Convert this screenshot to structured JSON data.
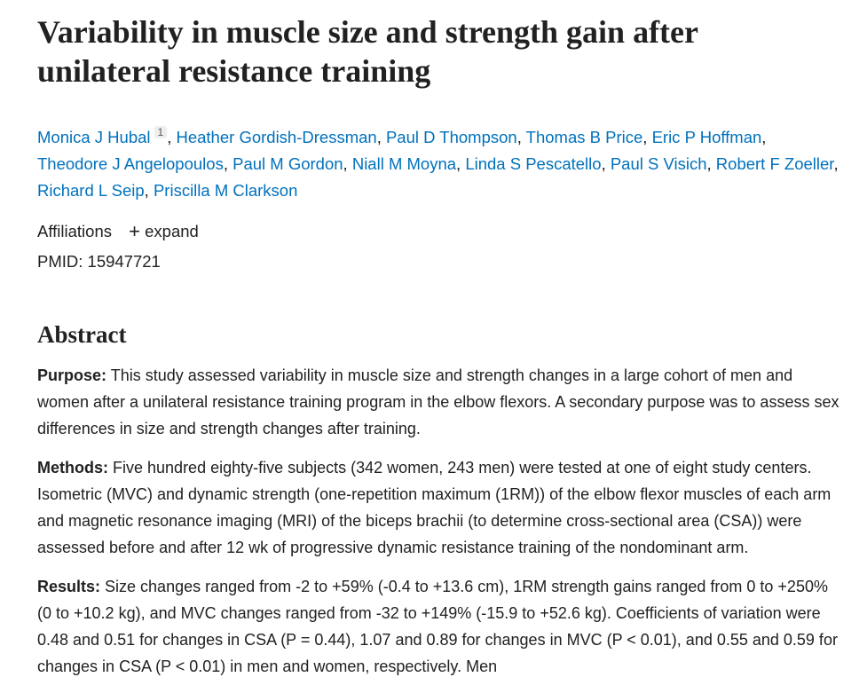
{
  "header": {
    "title": "Variability in muscle size and strength gain after unilateral resistance training",
    "authors": [
      {
        "name": "Monica J Hubal",
        "sup": "1"
      },
      {
        "name": "Heather Gordish-Dressman"
      },
      {
        "name": "Paul D Thompson"
      },
      {
        "name": "Thomas B Price"
      },
      {
        "name": "Eric P Hoffman"
      },
      {
        "name": "Theodore J Angelopoulos"
      },
      {
        "name": "Paul M Gordon"
      },
      {
        "name": "Niall M Moyna"
      },
      {
        "name": "Linda S Pescatello"
      },
      {
        "name": "Paul S Visich"
      },
      {
        "name": "Robert F Zoeller"
      },
      {
        "name": "Richard L Seip"
      },
      {
        "name": "Priscilla M Clarkson"
      }
    ],
    "affiliations": "Affiliations",
    "expand": "expand",
    "pmid": "PMID: 15947721"
  },
  "abstract": {
    "heading": "Abstract",
    "sections": [
      {
        "label": "Purpose:",
        "text": "This study assessed variability in muscle size and strength changes in a large cohort of men and women after a unilateral resistance training program in the elbow flexors. A secondary purpose was to assess sex differences in size and strength changes after training."
      },
      {
        "label": "Methods:",
        "text": "Five hundred eighty-five subjects (342 women, 243 men) were tested at one of eight study centers. Isometric (MVC) and dynamic strength (one-repetition maximum (1RM)) of the elbow flexor muscles of each arm and magnetic resonance imaging (MRI) of the biceps brachii (to determine cross-sectional area (CSA)) were assessed before and after 12 wk of progressive dynamic resistance training of the nondominant arm."
      },
      {
        "label": "Results:",
        "text": "Size changes ranged from -2 to +59% (-0.4 to +13.6 cm), 1RM strength gains ranged from 0 to +250% (0 to +10.2 kg), and MVC changes ranged from -32 to +149% (-15.9 to +52.6 kg). Coefficients of variation were 0.48 and 0.51 for changes in CSA (P = 0.44), 1.07 and 0.89 for changes in MVC (P < 0.01), and 0.55 and 0.59 for changes in CSA (P < 0.01) in men and women, respectively. Men"
      }
    ]
  }
}
